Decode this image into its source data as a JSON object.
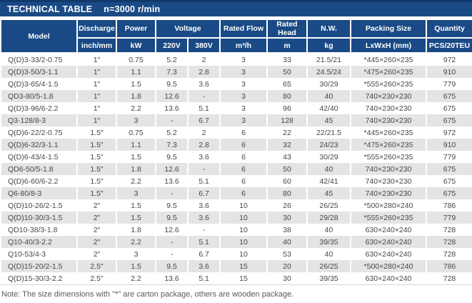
{
  "title": {
    "main": "TECHNICAL TABLE",
    "speed": "n=3000 r/min"
  },
  "table": {
    "header": {
      "model_label": "Model",
      "discharge_label": "Discharge",
      "discharge_unit": "inch/mm",
      "power_label": "Power",
      "power_unit": "kW",
      "voltage_label": "Voltage",
      "voltage_220": "220V",
      "voltage_380": "380V",
      "rated_flow_label": "Rated Flow",
      "rated_flow_unit": "m³/h",
      "rated_head_label": "Rated Head",
      "rated_head_unit": "m",
      "nw_label": "N.W.",
      "nw_unit": "kg",
      "packing_label": "Packing Size",
      "packing_unit": "LxWxH (mm)",
      "quantity_label": "Quantity",
      "quantity_unit": "PCS/20TEU"
    },
    "rows": [
      [
        "Q(D)3-33/2-0.75",
        "1\"",
        "0.75",
        "5.2",
        "2",
        "3",
        "33",
        "21.5/21",
        "*445×260×235",
        "972"
      ],
      [
        "Q(D)3-50/3-1.1",
        "1\"",
        "1.1",
        "7.3",
        "2.8",
        "3",
        "50",
        "24.5/24",
        "*475×260×235",
        "910"
      ],
      [
        "Q(D)3-65/4-1.5",
        "1\"",
        "1.5",
        "9.5",
        "3.6",
        "3",
        "65",
        "30/29",
        "*555×260×235",
        "779"
      ],
      [
        "QD3-80/5-1.8",
        "1\"",
        "1.8",
        "12.6",
        "-",
        "3",
        "80",
        "40",
        "740×230×230",
        "675"
      ],
      [
        "Q(D)3-96/6-2.2",
        "1\"",
        "2.2",
        "13.6",
        "5.1",
        "3",
        "96",
        "42/40",
        "740×230×230",
        "675"
      ],
      [
        "Q3-128/8-3",
        "1\"",
        "3",
        "-",
        "6.7",
        "3",
        "128",
        "45",
        "740×230×230",
        "675"
      ],
      [
        "Q(D)6-22/2-0.75",
        "1.5\"",
        "0.75",
        "5.2",
        "2",
        "6",
        "22",
        "22/21.5",
        "*445×260×235",
        "972"
      ],
      [
        "Q(D)6-32/3-1.1",
        "1.5\"",
        "1.1",
        "7.3",
        "2.8",
        "6",
        "32",
        "24/23",
        "*475×260×235",
        "910"
      ],
      [
        "Q(D)6-43/4-1.5",
        "1.5\"",
        "1.5",
        "9.5",
        "3.6",
        "6",
        "43",
        "30/29",
        "*555×260×235",
        "779"
      ],
      [
        "QD6-50/5-1.8",
        "1.5\"",
        "1.8",
        "12.6",
        "-",
        "6",
        "50",
        "40",
        "740×230×230",
        "675"
      ],
      [
        "Q(D)6-60/6-2.2",
        "1.5\"",
        "2.2",
        "13.6",
        "5.1",
        "6",
        "60",
        "42/41",
        "740×230×230",
        "675"
      ],
      [
        "Q6-80/8-3",
        "1.5\"",
        "3",
        "-",
        "6.7",
        "6",
        "80",
        "45",
        "740×230×230",
        "675"
      ],
      [
        "Q(D)10-26/2-1.5",
        "2\"",
        "1.5",
        "9.5",
        "3.6",
        "10",
        "26",
        "26/25",
        "*500×280×240",
        "786"
      ],
      [
        "Q(D)10-30/3-1.5",
        "2\"",
        "1.5",
        "9.5",
        "3.6",
        "10",
        "30",
        "29/28",
        "*555×260×235",
        "779"
      ],
      [
        "QD10-38/3-1.8",
        "2\"",
        "1.8",
        "12.6",
        "-",
        "10",
        "38",
        "40",
        "630×240×240",
        "728"
      ],
      [
        "Q10-40/3-2.2",
        "2\"",
        "2.2",
        "-",
        "5.1",
        "10",
        "40",
        "39/35",
        "630×240×240",
        "728"
      ],
      [
        "Q10-53/4-3",
        "2\"",
        "3",
        "-",
        "6.7",
        "10",
        "53",
        "40",
        "630×240×240",
        "728"
      ],
      [
        "Q(D)15-20/2-1.5",
        "2.5\"",
        "1.5",
        "9.5",
        "3.6",
        "15",
        "20",
        "26/25",
        "*500×280×240",
        "786"
      ],
      [
        "Q(D)15-30/3-2.2",
        "2.5\"",
        "2.2",
        "13.6",
        "5.1",
        "15",
        "30",
        "39/35",
        "630×240×240",
        "728"
      ]
    ]
  },
  "note": "Note: The size dimensions with \"*\" are carton package, others are wooden package.",
  "colors": {
    "title_bar_blue": "#1a4a85",
    "title_bar_top_edge": "#10396b",
    "header_blue": "#1a4a85",
    "row_alt_gray": "#e4e4e4",
    "body_text": "#474747",
    "note_text": "#5a5a5a"
  }
}
